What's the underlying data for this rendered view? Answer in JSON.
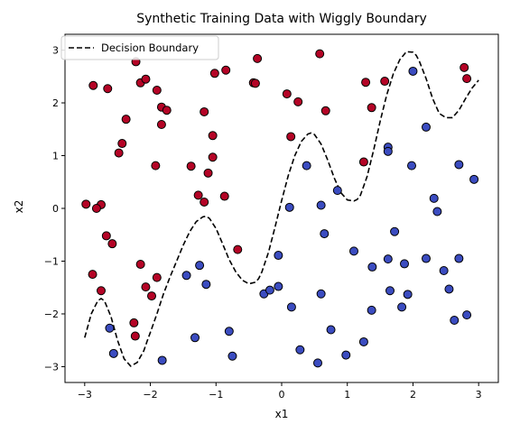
{
  "chart_data": {
    "type": "scatter",
    "title": "Synthetic Training Data with Wiggly Boundary",
    "xlabel": "x1",
    "ylabel": "x2",
    "xlim": [
      -3.3,
      3.3
    ],
    "ylim": [
      -3.3,
      3.3
    ],
    "xticks": [
      -3,
      -2,
      -1,
      0,
      1,
      2,
      3
    ],
    "yticks": [
      -3,
      -2,
      -1,
      0,
      1,
      2,
      3
    ],
    "grid": false,
    "legend": {
      "position": "top-left",
      "entries": [
        "Decision Boundary"
      ]
    },
    "colors": {
      "class_red": "#b40426",
      "class_blue": "#3b4cc0",
      "boundary": "#000000"
    },
    "boundary": {
      "name": "Decision Boundary",
      "style": "dashed",
      "x": [
        -3.0,
        -2.9,
        -2.8,
        -2.75,
        -2.7,
        -2.6,
        -2.5,
        -2.4,
        -2.3,
        -2.2,
        -2.1,
        -2.05,
        -2.0,
        -1.9,
        -1.8,
        -1.7,
        -1.6,
        -1.5,
        -1.4,
        -1.3,
        -1.2,
        -1.15,
        -1.1,
        -1.0,
        -0.9,
        -0.8,
        -0.7,
        -0.6,
        -0.5,
        -0.4,
        -0.35,
        -0.3,
        -0.2,
        -0.1,
        0.0,
        0.1,
        0.2,
        0.3,
        0.4,
        0.45,
        0.5,
        0.6,
        0.7,
        0.8,
        0.9,
        1.0,
        1.1,
        1.15,
        1.2,
        1.3,
        1.4,
        1.5,
        1.6,
        1.7,
        1.8,
        1.9,
        2.0,
        2.05,
        2.1,
        2.2,
        2.3,
        2.4,
        2.5,
        2.6,
        2.7,
        2.75,
        2.8,
        2.9,
        3.0
      ],
      "y": [
        -2.45,
        -2.0,
        -1.75,
        -1.71,
        -1.75,
        -2.05,
        -2.5,
        -2.85,
        -2.99,
        -2.92,
        -2.7,
        -2.52,
        -2.35,
        -2.0,
        -1.62,
        -1.3,
        -1.0,
        -0.7,
        -0.44,
        -0.25,
        -0.16,
        -0.15,
        -0.19,
        -0.38,
        -0.67,
        -0.97,
        -1.2,
        -1.36,
        -1.43,
        -1.4,
        -1.33,
        -1.2,
        -0.83,
        -0.35,
        0.15,
        0.62,
        1.0,
        1.27,
        1.41,
        1.43,
        1.4,
        1.22,
        0.92,
        0.58,
        0.3,
        0.16,
        0.14,
        0.17,
        0.25,
        0.6,
        1.1,
        1.65,
        2.15,
        2.55,
        2.82,
        2.97,
        2.96,
        2.9,
        2.78,
        2.46,
        2.08,
        1.8,
        1.72,
        1.72,
        1.86,
        1.97,
        2.08,
        2.28,
        2.43
      ]
    },
    "series": [
      {
        "class": 1,
        "color": "#b40426",
        "points": [
          [
            -2.22,
            2.78
          ],
          [
            -2.87,
            2.33
          ],
          [
            -2.65,
            2.27
          ],
          [
            -2.15,
            2.38
          ],
          [
            -2.07,
            2.45
          ],
          [
            -1.9,
            2.24
          ],
          [
            -1.83,
            1.92
          ],
          [
            -1.75,
            1.86
          ],
          [
            -2.37,
            1.69
          ],
          [
            -1.83,
            1.59
          ],
          [
            -2.43,
            1.23
          ],
          [
            -2.48,
            1.05
          ],
          [
            -1.92,
            0.81
          ],
          [
            -2.98,
            0.08
          ],
          [
            -2.75,
            0.07
          ],
          [
            -2.82,
            0.0
          ],
          [
            -2.67,
            -0.52
          ],
          [
            -2.58,
            -0.67
          ],
          [
            -2.15,
            -1.06
          ],
          [
            -2.88,
            -1.25
          ],
          [
            -1.9,
            -1.31
          ],
          [
            -2.07,
            -1.49
          ],
          [
            -1.98,
            -1.66
          ],
          [
            -2.75,
            -1.56
          ],
          [
            -2.25,
            -2.17
          ],
          [
            -2.23,
            -2.42
          ],
          [
            -1.02,
            2.56
          ],
          [
            -0.85,
            2.62
          ],
          [
            -0.43,
            2.38
          ],
          [
            -0.4,
            2.37
          ],
          [
            -0.37,
            2.84
          ],
          [
            -1.18,
            1.83
          ],
          [
            -1.05,
            1.38
          ],
          [
            -1.05,
            0.97
          ],
          [
            -1.12,
            0.67
          ],
          [
            -1.38,
            0.8
          ],
          [
            -1.27,
            0.25
          ],
          [
            -1.18,
            0.12
          ],
          [
            -0.87,
            0.23
          ],
          [
            -0.67,
            -0.78
          ],
          [
            0.08,
            2.17
          ],
          [
            0.25,
            2.02
          ],
          [
            0.58,
            2.93
          ],
          [
            0.67,
            1.85
          ],
          [
            0.14,
            1.36
          ],
          [
            1.28,
            2.39
          ],
          [
            1.57,
            2.41
          ],
          [
            1.37,
            1.91
          ],
          [
            1.25,
            0.88
          ],
          [
            2.78,
            2.67
          ],
          [
            2.82,
            2.46
          ]
        ]
      },
      {
        "class": 0,
        "color": "#3b4cc0",
        "points": [
          [
            -2.62,
            -2.27
          ],
          [
            -2.56,
            -2.75
          ],
          [
            -1.82,
            -2.88
          ],
          [
            -1.45,
            -1.27
          ],
          [
            -1.25,
            -1.08
          ],
          [
            -1.15,
            -1.44
          ],
          [
            -1.32,
            -2.45
          ],
          [
            -0.8,
            -2.33
          ],
          [
            -0.75,
            -2.8
          ],
          [
            -0.27,
            -1.62
          ],
          [
            -0.18,
            -1.55
          ],
          [
            -0.05,
            -1.48
          ],
          [
            -0.05,
            -0.89
          ],
          [
            0.12,
            0.02
          ],
          [
            0.15,
            -1.87
          ],
          [
            0.28,
            -2.68
          ],
          [
            0.38,
            0.81
          ],
          [
            0.55,
            -2.93
          ],
          [
            0.6,
            0.06
          ],
          [
            0.6,
            -1.62
          ],
          [
            0.65,
            -0.48
          ],
          [
            0.75,
            -2.3
          ],
          [
            0.85,
            0.34
          ],
          [
            0.98,
            -2.78
          ],
          [
            1.1,
            -0.81
          ],
          [
            1.25,
            -2.53
          ],
          [
            1.37,
            -1.93
          ],
          [
            1.38,
            -1.11
          ],
          [
            1.62,
            1.16
          ],
          [
            1.62,
            1.08
          ],
          [
            1.62,
            -0.96
          ],
          [
            1.65,
            -1.56
          ],
          [
            1.72,
            -0.44
          ],
          [
            1.83,
            -1.87
          ],
          [
            1.87,
            -1.05
          ],
          [
            1.92,
            -1.63
          ],
          [
            1.98,
            0.81
          ],
          [
            2.0,
            2.6
          ],
          [
            2.2,
            1.54
          ],
          [
            2.2,
            -0.95
          ],
          [
            2.32,
            0.19
          ],
          [
            2.37,
            -0.06
          ],
          [
            2.47,
            -1.18
          ],
          [
            2.55,
            -1.53
          ],
          [
            2.63,
            -2.12
          ],
          [
            2.7,
            0.83
          ],
          [
            2.7,
            -0.95
          ],
          [
            2.82,
            -2.02
          ],
          [
            2.93,
            0.55
          ]
        ]
      }
    ]
  }
}
